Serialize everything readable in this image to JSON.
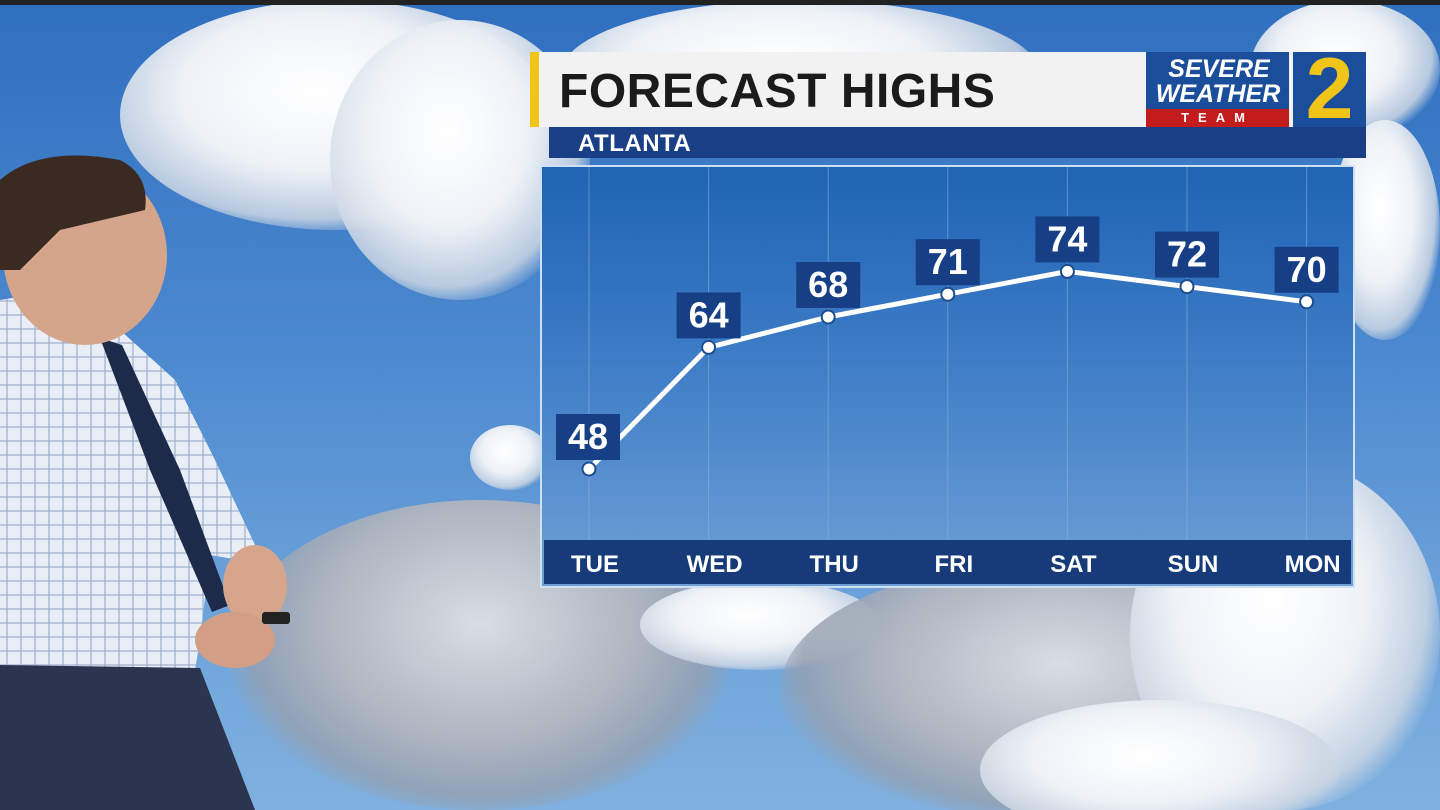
{
  "header": {
    "title": "FORECAST HIGHS",
    "location": "ATLANTA"
  },
  "logo": {
    "line1": "SEVERE",
    "line2": "WEATHER",
    "line3": "TEAM",
    "channel": "2"
  },
  "colors": {
    "title_accent": "#f0c419",
    "label_box": "#173f85",
    "line": "#ffffff",
    "day_strip": "#163b78"
  },
  "chart_data": {
    "type": "line",
    "title": "FORECAST HIGHS",
    "categories": [
      "TUE",
      "WED",
      "THU",
      "FRI",
      "SAT",
      "SUN",
      "MON"
    ],
    "series": [
      {
        "values": [
          48,
          64,
          68,
          71,
          74,
          72,
          70
        ]
      }
    ],
    "grid": "vertical",
    "legend": "none"
  }
}
